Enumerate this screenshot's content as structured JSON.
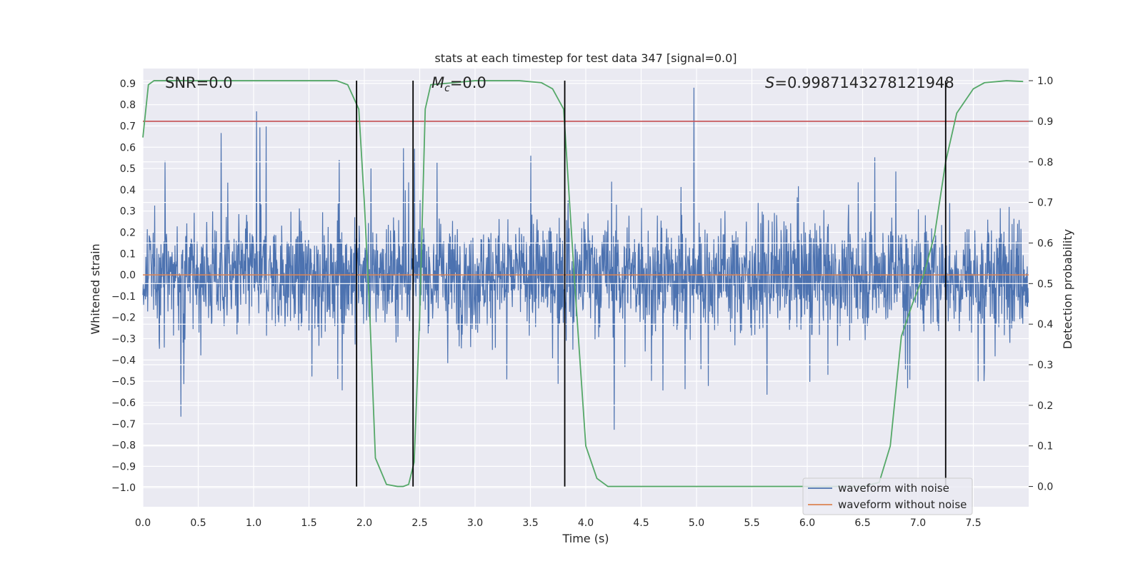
{
  "chart_data": {
    "type": "line",
    "title": "stats at each timestep for test data 347 [signal=0.0]",
    "xlabel": "Time (s)",
    "ylabel": "Whitened strain",
    "y2label": "Detection probability",
    "xlim": [
      0.0,
      8.0
    ],
    "ylim": [
      -1.09,
      0.97
    ],
    "y2lim": [
      -0.05,
      1.03
    ],
    "xticks": [
      "0.0",
      "0.5",
      "1.0",
      "1.5",
      "2.0",
      "2.5",
      "3.0",
      "3.5",
      "4.0",
      "4.5",
      "5.0",
      "5.5",
      "6.0",
      "6.5",
      "7.0",
      "7.5"
    ],
    "yticks": [
      "0.9",
      "0.8",
      "0.7",
      "0.6",
      "0.5",
      "0.4",
      "0.3",
      "0.2",
      "0.1",
      "0.0",
      "−0.1",
      "−0.2",
      "−0.3",
      "−0.4",
      "−0.5",
      "−0.6",
      "−0.7",
      "−0.8",
      "−0.9",
      "−1.0"
    ],
    "y2ticks": [
      "1.0",
      "0.9",
      "0.8",
      "0.7",
      "0.6",
      "0.5",
      "0.4",
      "0.3",
      "0.2",
      "0.1",
      "0.0"
    ],
    "annotations": {
      "snr": "SNR=0.0",
      "mc_symbol": "M",
      "mc_sub": "c",
      "mc_value": "=0.0",
      "s_symbol": "S",
      "s_value": "=0.9987143278121948"
    },
    "series": [
      {
        "name": "waveform with noise",
        "color": "#4c72b0",
        "axis": "left",
        "description": "dense whitened noise, mostly within ±0.4 with spikes to about 0.88 and −1.0"
      },
      {
        "name": "waveform without noise",
        "color": "#dd8452",
        "axis": "left",
        "y": 0.0
      }
    ],
    "threshold": {
      "axis": "right",
      "y": 0.9,
      "color": "#c44e52"
    },
    "detection_probability": {
      "color": "#55a868",
      "axis": "right",
      "x": [
        0.0,
        0.05,
        0.1,
        0.2,
        0.5,
        1.0,
        1.5,
        1.75,
        1.85,
        1.95,
        2.0,
        2.05,
        2.1,
        2.2,
        2.3,
        2.35,
        2.4,
        2.45,
        2.5,
        2.55,
        2.6,
        3.0,
        3.4,
        3.6,
        3.7,
        3.8,
        3.9,
        4.0,
        4.1,
        4.2,
        4.5,
        5.0,
        6.0,
        6.5,
        6.65,
        6.75,
        6.85,
        6.95,
        7.05,
        7.15,
        7.25,
        7.35,
        7.5,
        7.6,
        7.8,
        7.95
      ],
      "y": [
        0.86,
        0.99,
        1.0,
        1.0,
        1.0,
        1.0,
        1.0,
        1.0,
        0.99,
        0.93,
        0.7,
        0.42,
        0.07,
        0.005,
        0.0,
        0.0,
        0.005,
        0.06,
        0.42,
        0.93,
        0.99,
        1.0,
        1.0,
        0.995,
        0.98,
        0.93,
        0.5,
        0.1,
        0.02,
        0.0,
        0.0,
        0.0,
        0.0,
        0.0,
        0.01,
        0.1,
        0.37,
        0.45,
        0.52,
        0.62,
        0.8,
        0.92,
        0.98,
        0.995,
        1.0,
        0.998
      ]
    },
    "vlines": [
      1.93,
      2.44,
      3.81,
      7.25
    ],
    "legend": {
      "position": "lower-right",
      "entries": [
        "waveform with noise",
        "waveform without noise"
      ]
    },
    "grid": true
  }
}
